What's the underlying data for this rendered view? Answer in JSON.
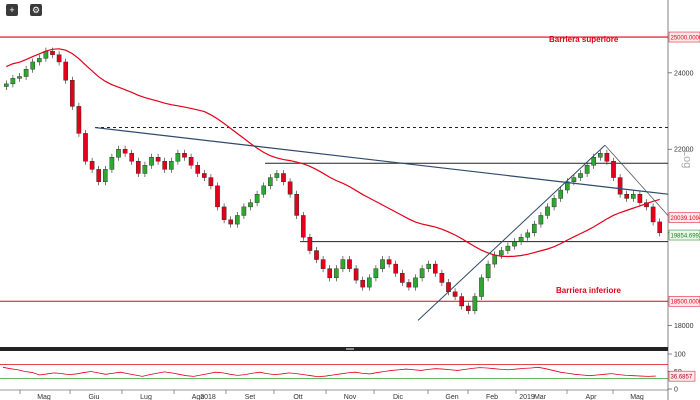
{
  "toolbar": {
    "icons": [
      {
        "name": "crosshair-icon",
        "glyph": "+"
      },
      {
        "name": "settings-icon",
        "glyph": "⚙"
      }
    ]
  },
  "colors": {
    "background": "#ffffff",
    "candle_up": "#2fa62f",
    "candle_down": "#e2001a",
    "barrier_lines": "#e2001a",
    "ma_line": "#e2001a",
    "trendline": "#2e4a6b",
    "support_lines": "#222222",
    "rsi_line": "#e2001a",
    "rsi_upper": "#e2001a",
    "rsi_lower": "#2fa62f"
  },
  "chart_data": [
    {
      "type": "candlestick",
      "title": "",
      "scale": "Log",
      "yticks": [
        18000,
        20000,
        22000,
        24000
      ],
      "ylim": [
        17600,
        25900
      ],
      "months": [
        "Mag",
        "Giu",
        "Lug",
        "Ago",
        "Set",
        "Ott",
        "Nov",
        "Dic",
        "Gen",
        "Feb",
        "Mar",
        "Apr",
        "Mag"
      ],
      "years": [
        "2018",
        "2019"
      ],
      "close_series": [
        23700,
        23850,
        23900,
        24100,
        24300,
        24400,
        24600,
        24500,
        24300,
        23800,
        23100,
        22400,
        21700,
        21500,
        21200,
        21500,
        21800,
        22000,
        21900,
        21700,
        21400,
        21600,
        21800,
        21700,
        21500,
        21700,
        21900,
        21800,
        21600,
        21400,
        21300,
        21100,
        20600,
        20300,
        20200,
        20400,
        20600,
        20700,
        20900,
        21100,
        21300,
        21400,
        21200,
        20900,
        20400,
        19900,
        19600,
        19400,
        19200,
        19000,
        19200,
        19400,
        19200,
        18950,
        18800,
        19000,
        19200,
        19400,
        19300,
        19100,
        18900,
        18800,
        19000,
        19200,
        19300,
        19100,
        18900,
        18700,
        18600,
        18400,
        18300,
        18600,
        19000,
        19300,
        19500,
        19600,
        19700,
        19800,
        19900,
        20000,
        20200,
        20400,
        20600,
        20800,
        21000,
        21200,
        21300,
        21400,
        21600,
        21800,
        21900,
        21700,
        21300,
        20900,
        20800,
        20900,
        20700,
        20600,
        20250,
        20000
      ],
      "reference_lines": {
        "barriera_superiore": 25000,
        "barriera_inferiore": 18500,
        "dotted_resistance": 22550,
        "resistance_black": 21650,
        "support_black": 19800
      },
      "tags": {
        "upper_barrier": "25000.0000",
        "lower_barrier": "18500.0000",
        "ma_value": "20039.1094",
        "last_price": "19854.6992"
      },
      "annotations": {
        "upper": "Barriera superiore",
        "lower": "Barriera inferiore"
      }
    },
    {
      "type": "line",
      "name": "RSI",
      "yticks": [
        0,
        50,
        100
      ],
      "levels": [
        30,
        70
      ],
      "last_value": "36.6857",
      "values": [
        62,
        58,
        55,
        50,
        47,
        40,
        43,
        46,
        44,
        41,
        43,
        47,
        50,
        46,
        42,
        45,
        48,
        44,
        40,
        36,
        41,
        45,
        49,
        46,
        42,
        38,
        36,
        40,
        44,
        48,
        46,
        42,
        39,
        41,
        45,
        48,
        44,
        41,
        43,
        46,
        44,
        41,
        38,
        35,
        37,
        40,
        43,
        46,
        48,
        45,
        43,
        47,
        50,
        53,
        55,
        57,
        55,
        53,
        56,
        58,
        57,
        55,
        53,
        56,
        59,
        61,
        60,
        58,
        56,
        55,
        57,
        59,
        60,
        62,
        58,
        53,
        48,
        45,
        42,
        40,
        38,
        40,
        42,
        44,
        41,
        39,
        38,
        37,
        36,
        37
      ]
    }
  ]
}
